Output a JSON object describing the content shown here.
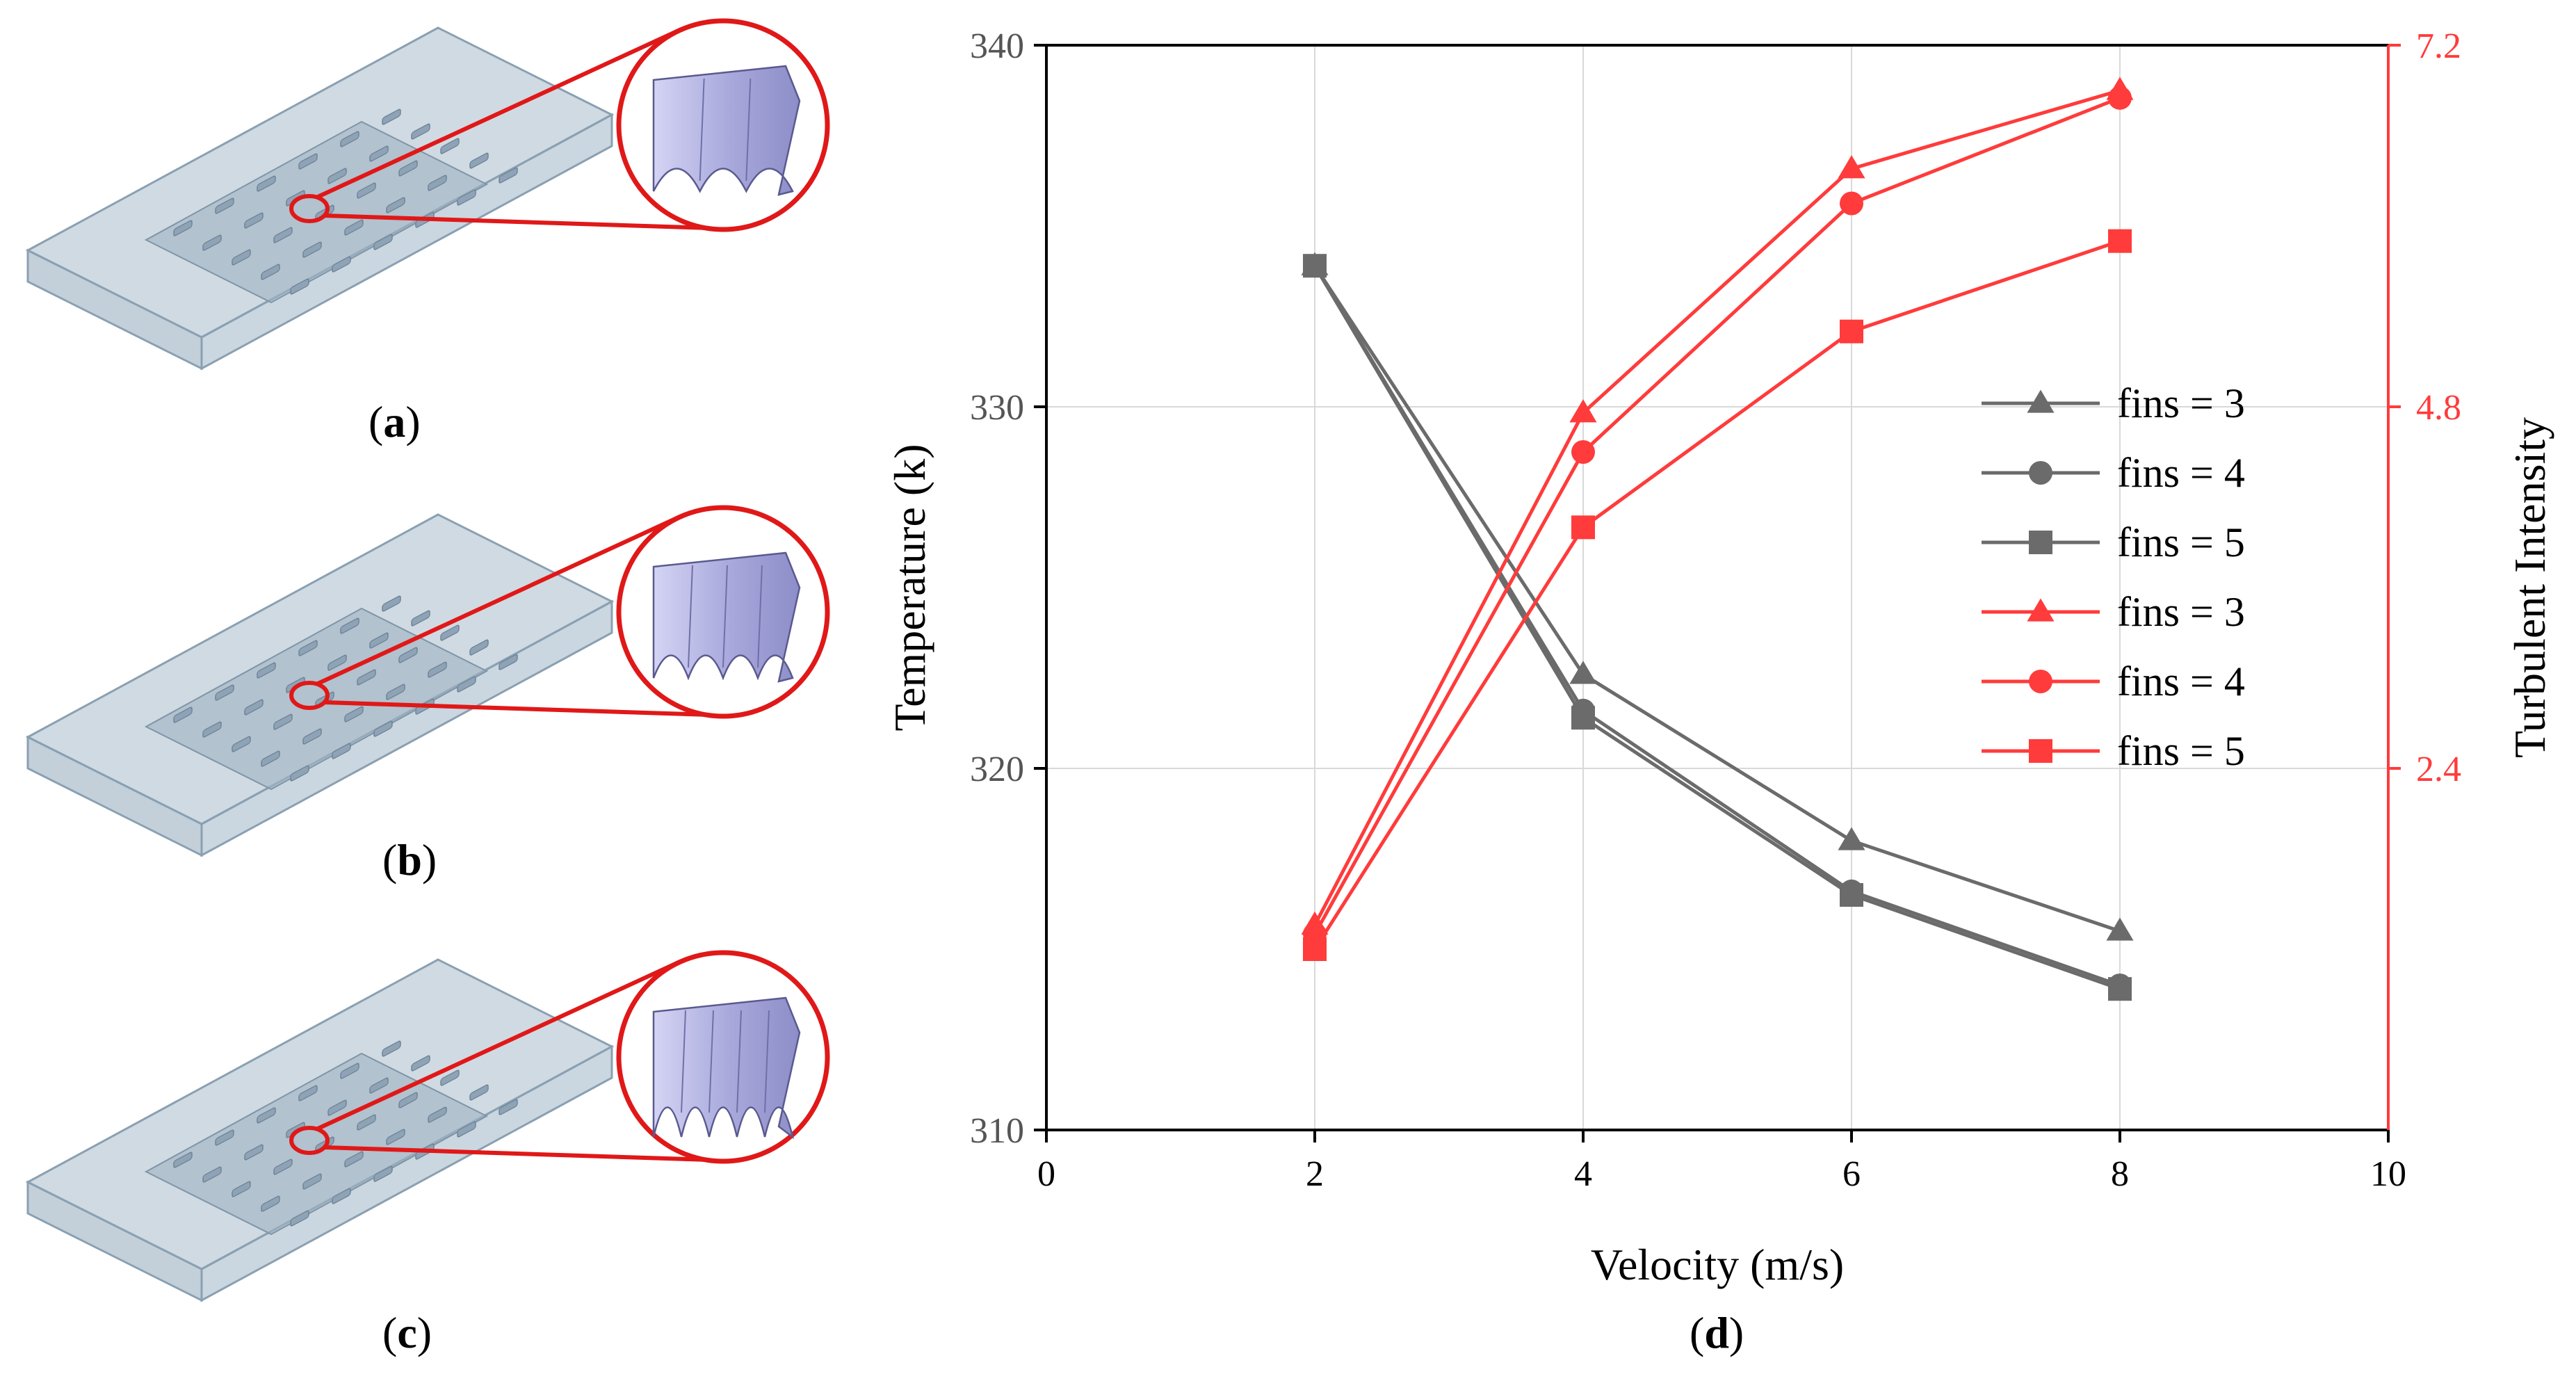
{
  "panels": {
    "a": {
      "open": "(",
      "letter": "a",
      "close": ")"
    },
    "b": {
      "open": "(",
      "letter": "b",
      "close": ")"
    },
    "c": {
      "open": "(",
      "letter": "c",
      "close": ")"
    },
    "d": {
      "open": "(",
      "letter": "d",
      "close": ")"
    }
  },
  "colors": {
    "temperature": "#6b6b6b",
    "turbulence": "#ff3b3b",
    "plate": "#a9bccb",
    "plate_edge": "#8aa0b2",
    "fin": "#b9b9e6",
    "zoom_circle": "#e01818"
  },
  "chart_data": {
    "type": "line",
    "xlabel": "Velocity (m/s)",
    "ylabel": "Temperature (k)",
    "y2label": "Turbulent Intensity",
    "xlim": [
      0,
      10
    ],
    "ylim": [
      310,
      340
    ],
    "y2lim": [
      0,
      7.2
    ],
    "x_ticks": [
      "0",
      "2",
      "4",
      "6",
      "8",
      "10"
    ],
    "y_ticks": [
      "310",
      "320",
      "330",
      "340"
    ],
    "y2_ticks": [
      "2.4",
      "4.8",
      "7.2"
    ],
    "grid": true,
    "legend_position": "right",
    "x": [
      2,
      4,
      6,
      8
    ],
    "series": [
      {
        "name": "fins = 3",
        "axis": "left",
        "marker": "triangle",
        "values": [
          333.9,
          322.6,
          318.0,
          315.5
        ]
      },
      {
        "name": "fins = 4",
        "axis": "left",
        "marker": "circle",
        "values": [
          333.9,
          321.6,
          316.6,
          314.0
        ]
      },
      {
        "name": "fins = 5",
        "axis": "left",
        "marker": "square",
        "values": [
          333.9,
          321.4,
          316.5,
          313.9
        ]
      },
      {
        "name": "fins = 3",
        "axis": "right",
        "marker": "triangle",
        "values": [
          1.36,
          4.76,
          6.38,
          6.9
        ]
      },
      {
        "name": "fins = 4",
        "axis": "right",
        "marker": "circle",
        "values": [
          1.3,
          4.5,
          6.15,
          6.85
        ]
      },
      {
        "name": "fins = 5",
        "axis": "right",
        "marker": "square",
        "values": [
          1.2,
          4.0,
          5.3,
          5.9
        ]
      }
    ]
  }
}
